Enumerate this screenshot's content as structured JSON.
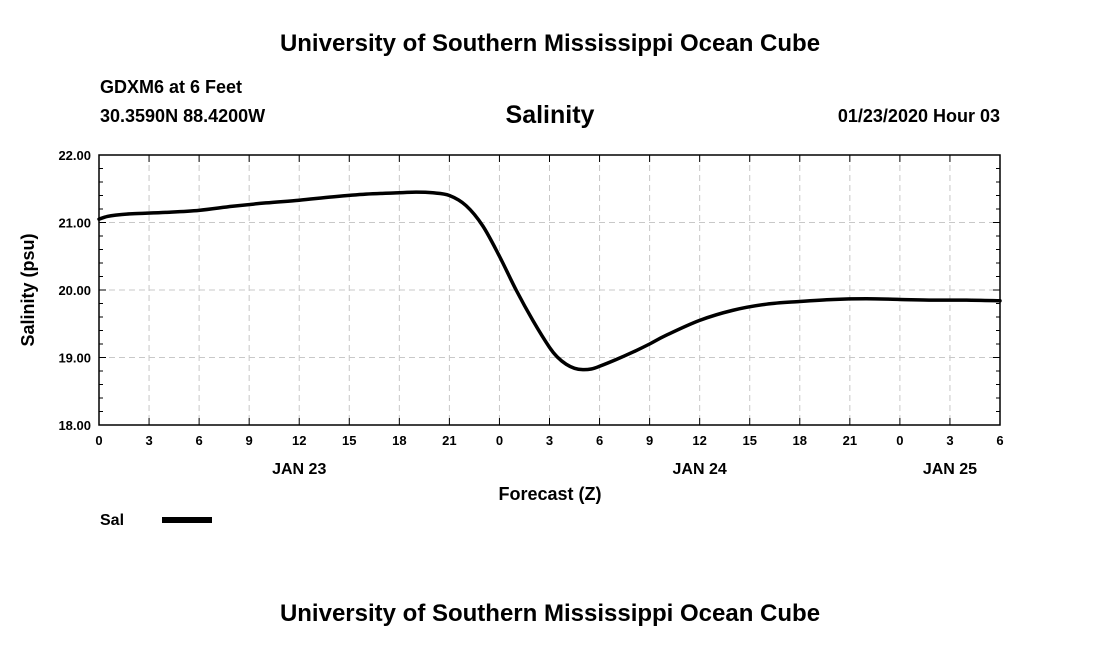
{
  "header": {
    "title": "University of Southern Mississippi Ocean Cube",
    "station": "GDXM6 at 6 Feet",
    "coords": "30.3590N 88.4200W",
    "timestamp": "01/23/2020 Hour 03"
  },
  "footer": {
    "title": "University of Southern Mississippi Ocean Cube"
  },
  "chart_data": {
    "type": "line",
    "title": "Salinity",
    "xlabel": "Forecast (Z)",
    "ylabel": "Salinity (psu)",
    "ylim": [
      18,
      22
    ],
    "xlim": [
      0,
      54
    ],
    "yticks": [
      "18.00",
      "19.00",
      "20.00",
      "21.00",
      "22.00"
    ],
    "xticks": [
      "0",
      "3",
      "6",
      "9",
      "12",
      "15",
      "18",
      "21",
      "0",
      "3",
      "6",
      "9",
      "12",
      "15",
      "18",
      "21",
      "0",
      "3",
      "6"
    ],
    "date_labels": [
      {
        "label": "JAN 23",
        "hour": 12
      },
      {
        "label": "JAN 24",
        "hour": 36
      },
      {
        "label": "JAN 25",
        "hour": 51
      }
    ],
    "grid": true,
    "legend": [
      {
        "name": "Sal",
        "color": "#000000"
      }
    ],
    "series": [
      {
        "name": "Sal",
        "color": "#000000",
        "x": [
          0,
          0.5,
          1,
          2,
          4,
          6,
          8,
          10,
          12,
          14,
          16,
          18,
          19,
          20,
          21,
          22,
          23,
          24,
          25,
          26,
          27,
          27.5,
          28,
          28.5,
          29,
          29.5,
          30,
          31,
          32,
          33,
          34,
          36,
          38,
          40,
          42,
          44,
          46,
          48,
          50,
          52,
          54
        ],
        "y": [
          21.05,
          21.09,
          21.11,
          21.13,
          21.15,
          21.18,
          21.24,
          21.29,
          21.33,
          21.38,
          21.42,
          21.44,
          21.45,
          21.44,
          21.4,
          21.25,
          20.95,
          20.5,
          20.0,
          19.55,
          19.15,
          19.0,
          18.9,
          18.84,
          18.82,
          18.83,
          18.87,
          18.97,
          19.08,
          19.2,
          19.33,
          19.55,
          19.7,
          19.79,
          19.83,
          19.86,
          19.87,
          19.86,
          19.85,
          19.85,
          19.84
        ]
      }
    ]
  }
}
